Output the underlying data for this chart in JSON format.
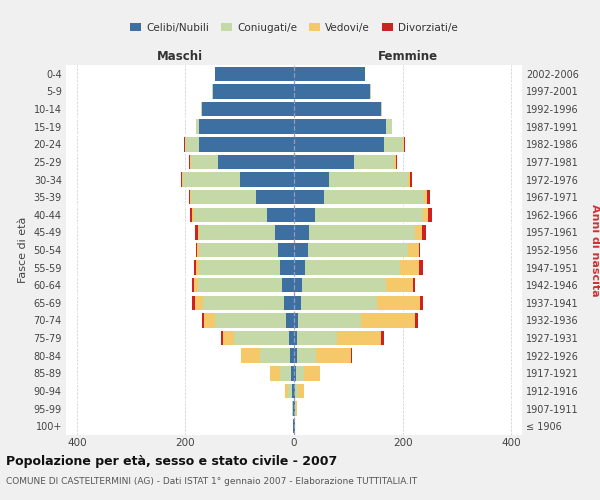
{
  "age_groups": [
    "100+",
    "95-99",
    "90-94",
    "85-89",
    "80-84",
    "75-79",
    "70-74",
    "65-69",
    "60-64",
    "55-59",
    "50-54",
    "45-49",
    "40-44",
    "35-39",
    "30-34",
    "25-29",
    "20-24",
    "15-19",
    "10-14",
    "5-9",
    "0-4"
  ],
  "birth_years": [
    "≤ 1906",
    "1907-1911",
    "1912-1916",
    "1917-1921",
    "1922-1926",
    "1927-1931",
    "1932-1936",
    "1937-1941",
    "1942-1946",
    "1947-1951",
    "1952-1956",
    "1957-1961",
    "1962-1966",
    "1967-1971",
    "1972-1976",
    "1977-1981",
    "1982-1986",
    "1987-1991",
    "1992-1996",
    "1997-2001",
    "2002-2006"
  ],
  "males": {
    "celibe": [
      1,
      2,
      3,
      5,
      8,
      10,
      15,
      18,
      22,
      25,
      30,
      35,
      50,
      70,
      100,
      140,
      175,
      175,
      170,
      150,
      145
    ],
    "coniugato": [
      0,
      2,
      8,
      20,
      55,
      100,
      130,
      150,
      155,
      150,
      145,
      140,
      135,
      120,
      105,
      50,
      25,
      5,
      2,
      1,
      0
    ],
    "vedovo": [
      0,
      0,
      5,
      20,
      35,
      20,
      20,
      15,
      8,
      5,
      3,
      2,
      2,
      1,
      1,
      1,
      1,
      0,
      0,
      0,
      0
    ],
    "divorziato": [
      0,
      0,
      0,
      0,
      0,
      5,
      5,
      5,
      3,
      5,
      3,
      5,
      5,
      3,
      3,
      3,
      2,
      0,
      0,
      0,
      0
    ]
  },
  "females": {
    "nubile": [
      1,
      2,
      2,
      3,
      5,
      5,
      8,
      12,
      15,
      20,
      25,
      28,
      38,
      55,
      65,
      110,
      165,
      170,
      160,
      140,
      130
    ],
    "coniugata": [
      0,
      2,
      5,
      15,
      35,
      75,
      115,
      140,
      155,
      175,
      185,
      195,
      200,
      185,
      145,
      75,
      35,
      10,
      2,
      1,
      0
    ],
    "vedova": [
      0,
      2,
      12,
      30,
      65,
      80,
      100,
      80,
      50,
      35,
      20,
      12,
      8,
      5,
      3,
      2,
      2,
      0,
      0,
      0,
      0
    ],
    "divorziata": [
      0,
      0,
      0,
      0,
      2,
      5,
      5,
      5,
      3,
      8,
      3,
      8,
      8,
      5,
      5,
      3,
      2,
      0,
      0,
      0,
      0
    ]
  },
  "colors": {
    "celibe": "#3d6fa0",
    "coniugato": "#c5d9a8",
    "vedovo": "#f5c96a",
    "divorziato": "#cc2222"
  },
  "xlim": 420,
  "title": "Popolazione per età, sesso e stato civile - 2007",
  "subtitle": "COMUNE DI CASTELTERMINI (AG) - Dati ISTAT 1° gennaio 2007 - Elaborazione TUTTITALIA.IT",
  "ylabel_left": "Fasce di età",
  "ylabel_right": "Anni di nascita",
  "xlabel_left": "Maschi",
  "xlabel_right": "Femmine",
  "bg_color": "#f0f0f0",
  "plot_bg_color": "#ffffff",
  "grid_color": "#cccccc"
}
